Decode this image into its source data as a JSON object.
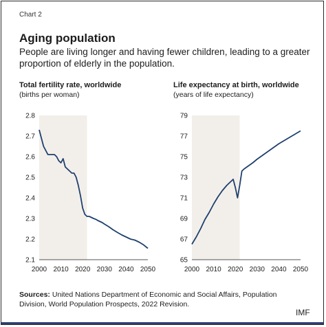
{
  "header": {
    "chart_label": "Chart 2",
    "title": "Aging population",
    "subtitle": "People are living longer and having fewer children, leading to a greater proportion of elderly in the population."
  },
  "footer": {
    "sources_label": "Sources:",
    "sources_text": "United Nations Department of Economic and Social Affairs, Population Division, World Population Prospects, 2022 Revision.",
    "brand": "IMF"
  },
  "colors": {
    "line": "#1e3f6e",
    "shade": "#f2efea",
    "bottom_bar": "#2b3f73"
  },
  "chart_data": [
    {
      "type": "line",
      "title": "Total fertility rate, worldwide",
      "ylabel": "(births per woman)",
      "xlim": [
        2000,
        2050
      ],
      "ylim": [
        2.1,
        2.8
      ],
      "xticks": [
        "2000",
        "2010",
        "2020",
        "2030",
        "2040",
        "2050"
      ],
      "yticks": [
        "2.8",
        "2.7",
        "2.6",
        "2.5",
        "2.4",
        "2.3",
        "2.2",
        "2.1"
      ],
      "shaded_range": [
        2000,
        2022
      ],
      "series": [
        {
          "x": [
            2000,
            2001,
            2002,
            2003,
            2004,
            2005,
            2006,
            2007,
            2008,
            2009,
            2010,
            2011,
            2012,
            2013,
            2014,
            2015,
            2016,
            2017,
            2018,
            2019,
            2020,
            2021,
            2022,
            2023,
            2024,
            2025,
            2026,
            2027,
            2028,
            2029,
            2030,
            2032,
            2034,
            2036,
            2038,
            2040,
            2042,
            2044,
            2046,
            2048,
            2050
          ],
          "y": [
            2.73,
            2.69,
            2.65,
            2.63,
            2.61,
            2.61,
            2.61,
            2.61,
            2.6,
            2.58,
            2.57,
            2.59,
            2.55,
            2.54,
            2.53,
            2.52,
            2.52,
            2.5,
            2.46,
            2.41,
            2.35,
            2.32,
            2.31,
            2.31,
            2.305,
            2.3,
            2.296,
            2.29,
            2.285,
            2.28,
            2.273,
            2.26,
            2.245,
            2.232,
            2.22,
            2.21,
            2.2,
            2.195,
            2.185,
            2.172,
            2.155
          ]
        }
      ]
    },
    {
      "type": "line",
      "title": "Life expectancy at birth, worldwide",
      "ylabel": "(years of life expectancy)",
      "xlim": [
        2000,
        2050
      ],
      "ylim": [
        65,
        79
      ],
      "xticks": [
        "2000",
        "2010",
        "2020",
        "2030",
        "2040",
        "2050"
      ],
      "yticks": [
        "79",
        "77",
        "75",
        "73",
        "71",
        "69",
        "67",
        "65"
      ],
      "shaded_range": [
        2000,
        2022
      ],
      "series": [
        {
          "x": [
            2000,
            2002,
            2004,
            2006,
            2008,
            2010,
            2012,
            2014,
            2016,
            2018,
            2019,
            2020,
            2021,
            2022,
            2023,
            2024,
            2026,
            2028,
            2030,
            2032,
            2034,
            2036,
            2038,
            2040,
            2042,
            2044,
            2046,
            2048,
            2050
          ],
          "y": [
            66.5,
            67.2,
            68.0,
            68.9,
            69.6,
            70.4,
            71.1,
            71.7,
            72.2,
            72.6,
            72.8,
            72.0,
            71.0,
            72.2,
            73.6,
            73.8,
            74.1,
            74.4,
            74.75,
            75.05,
            75.35,
            75.65,
            75.95,
            76.25,
            76.5,
            76.75,
            77.0,
            77.25,
            77.5
          ]
        }
      ]
    }
  ]
}
